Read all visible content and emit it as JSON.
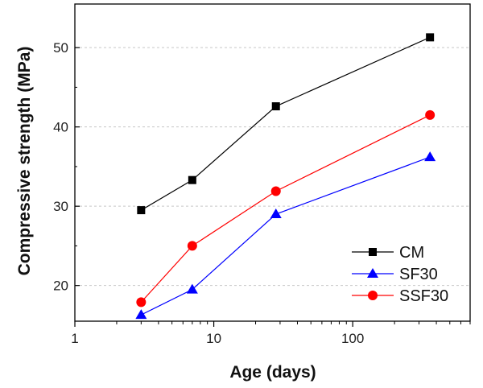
{
  "chart_data": {
    "type": "line",
    "x_scale": "log",
    "xlabel": "Age (days)",
    "ylabel": "Compressive strength (MPa)",
    "xlim": [
      1,
      700
    ],
    "ylim": [
      15.5,
      55.5
    ],
    "x_ticks": [
      1,
      10,
      100
    ],
    "x_tick_labels": [
      "1",
      "10",
      "100"
    ],
    "y_ticks": [
      20,
      30,
      40,
      50
    ],
    "y_tick_labels": [
      "20",
      "30",
      "40",
      "50"
    ],
    "grid": "horizontal dashed",
    "legend_position": "bottom-right",
    "x": [
      3,
      7,
      28,
      360
    ],
    "series": [
      {
        "name": "CM",
        "color": "#000000",
        "marker": "square",
        "values": [
          29.5,
          33.3,
          42.6,
          51.3
        ]
      },
      {
        "name": "SF30",
        "color": "#0000ff",
        "marker": "triangle",
        "values": [
          16.3,
          19.5,
          29.0,
          36.2
        ]
      },
      {
        "name": "SSF30",
        "color": "#ff0000",
        "marker": "circle",
        "values": [
          17.9,
          25.0,
          31.9,
          41.5
        ]
      }
    ]
  }
}
